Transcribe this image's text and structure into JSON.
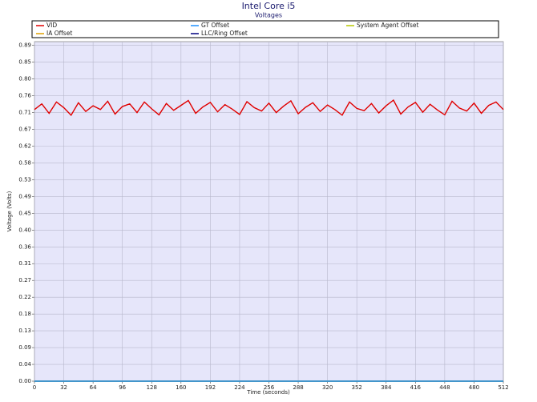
{
  "chart_data": {
    "type": "line",
    "title": "Intel Core i5",
    "subtitle": "Voltages",
    "x_label": "Time (seconds)",
    "y_label": "Voltage (Volts)",
    "x": [
      0,
      8,
      16,
      24,
      32,
      40,
      48,
      56,
      64,
      72,
      80,
      88,
      96,
      104,
      112,
      120,
      128,
      136,
      144,
      152,
      160,
      168,
      176,
      184,
      192,
      200,
      208,
      216,
      224,
      232,
      240,
      248,
      256,
      264,
      272,
      280,
      288,
      296,
      304,
      312,
      320,
      328,
      336,
      344,
      352,
      360,
      368,
      376,
      384,
      392,
      400,
      408,
      416,
      424,
      432,
      440,
      448,
      456,
      464,
      472,
      480,
      488,
      496,
      504,
      512
    ],
    "series": [
      {
        "name": "VID",
        "color": "#e00000",
        "values": [
          0.72,
          0.735,
          0.71,
          0.74,
          0.725,
          0.705,
          0.738,
          0.715,
          0.73,
          0.72,
          0.742,
          0.708,
          0.728,
          0.735,
          0.712,
          0.74,
          0.722,
          0.706,
          0.736,
          0.718,
          0.731,
          0.744,
          0.71,
          0.727,
          0.739,
          0.714,
          0.733,
          0.721,
          0.707,
          0.741,
          0.725,
          0.716,
          0.737,
          0.712,
          0.729,
          0.743,
          0.709,
          0.726,
          0.738,
          0.715,
          0.732,
          0.72,
          0.705,
          0.74,
          0.723,
          0.717,
          0.736,
          0.711,
          0.73,
          0.745,
          0.708,
          0.727,
          0.739,
          0.713,
          0.734,
          0.719,
          0.706,
          0.742,
          0.724,
          0.716,
          0.737,
          0.71,
          0.731,
          0.74,
          0.72
        ]
      },
      {
        "name": "GT Offset",
        "color": "#1e90ff",
        "values": [
          0,
          0,
          0,
          0,
          0,
          0,
          0,
          0,
          0,
          0,
          0,
          0,
          0,
          0,
          0,
          0,
          0,
          0,
          0,
          0,
          0,
          0,
          0,
          0,
          0,
          0,
          0,
          0,
          0,
          0,
          0,
          0,
          0,
          0,
          0,
          0,
          0,
          0,
          0,
          0,
          0,
          0,
          0,
          0,
          0,
          0,
          0,
          0,
          0,
          0,
          0,
          0,
          0,
          0,
          0,
          0,
          0,
          0,
          0,
          0,
          0,
          0,
          0,
          0,
          0
        ]
      },
      {
        "name": "System Agent Offset",
        "color": "#b8c800",
        "values": [
          0,
          0,
          0,
          0,
          0,
          0,
          0,
          0,
          0,
          0,
          0,
          0,
          0,
          0,
          0,
          0,
          0,
          0,
          0,
          0,
          0,
          0,
          0,
          0,
          0,
          0,
          0,
          0,
          0,
          0,
          0,
          0,
          0,
          0,
          0,
          0,
          0,
          0,
          0,
          0,
          0,
          0,
          0,
          0,
          0,
          0,
          0,
          0,
          0,
          0,
          0,
          0,
          0,
          0,
          0,
          0,
          0,
          0,
          0,
          0,
          0,
          0,
          0,
          0,
          0
        ]
      },
      {
        "name": "IA Offset",
        "color": "#e0a000",
        "values": [
          0,
          0,
          0,
          0,
          0,
          0,
          0,
          0,
          0,
          0,
          0,
          0,
          0,
          0,
          0,
          0,
          0,
          0,
          0,
          0,
          0,
          0,
          0,
          0,
          0,
          0,
          0,
          0,
          0,
          0,
          0,
          0,
          0,
          0,
          0,
          0,
          0,
          0,
          0,
          0,
          0,
          0,
          0,
          0,
          0,
          0,
          0,
          0,
          0,
          0,
          0,
          0,
          0,
          0,
          0,
          0,
          0,
          0,
          0,
          0,
          0,
          0,
          0,
          0,
          0
        ]
      },
      {
        "name": "LLC/Ring Offset",
        "color": "#000080",
        "values": [
          0,
          0,
          0,
          0,
          0,
          0,
          0,
          0,
          0,
          0,
          0,
          0,
          0,
          0,
          0,
          0,
          0,
          0,
          0,
          0,
          0,
          0,
          0,
          0,
          0,
          0,
          0,
          0,
          0,
          0,
          0,
          0,
          0,
          0,
          0,
          0,
          0,
          0,
          0,
          0,
          0,
          0,
          0,
          0,
          0,
          0,
          0,
          0,
          0,
          0,
          0,
          0,
          0,
          0,
          0,
          0,
          0,
          0,
          0,
          0,
          0,
          0,
          0,
          0,
          0
        ]
      }
    ],
    "xlim": [
      0,
      512
    ],
    "xticks": [
      0,
      32,
      64,
      96,
      128,
      160,
      192,
      224,
      256,
      288,
      320,
      352,
      384,
      416,
      448,
      480,
      512
    ],
    "ylim": [
      0,
      0.9
    ],
    "yticks": [
      {
        "value": 0,
        "label": "0.00"
      },
      {
        "value": 0.0445,
        "label": "0.04"
      },
      {
        "value": 0.089,
        "label": "0.09"
      },
      {
        "value": 0.1335,
        "label": "0.13"
      },
      {
        "value": 0.178,
        "label": "0.18"
      },
      {
        "value": 0.2225,
        "label": "0.22"
      },
      {
        "value": 0.267,
        "label": "0.27"
      },
      {
        "value": 0.3115,
        "label": "0.31"
      },
      {
        "value": 0.356,
        "label": "0.36"
      },
      {
        "value": 0.4005,
        "label": "0.40"
      },
      {
        "value": 0.445,
        "label": "0.45"
      },
      {
        "value": 0.4895,
        "label": "0.49"
      },
      {
        "value": 0.534,
        "label": "0.53"
      },
      {
        "value": 0.5785,
        "label": "0.58"
      },
      {
        "value": 0.623,
        "label": "0.62"
      },
      {
        "value": 0.6675,
        "label": "0.67"
      },
      {
        "value": 0.712,
        "label": "0.71"
      },
      {
        "value": 0.7565,
        "label": "0.76"
      },
      {
        "value": 0.801,
        "label": "0.80"
      },
      {
        "value": 0.8455,
        "label": "0.85"
      },
      0.89
    ],
    "grid": true,
    "plot_background": "#e6e6fa"
  }
}
